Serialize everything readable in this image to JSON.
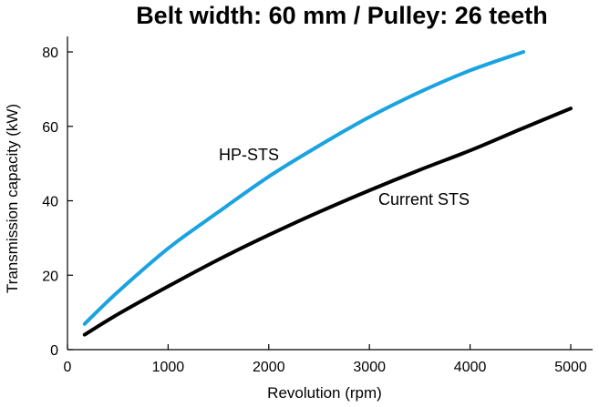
{
  "chart_data": {
    "type": "line",
    "title": "Belt width: 60 mm / Pulley: 26 teeth",
    "xlabel": "Revolution (rpm)",
    "ylabel": "Transmission capacity (kW)",
    "xlim": [
      0,
      5000
    ],
    "ylim": [
      0,
      80
    ],
    "x_ticks": [
      "0",
      "1000",
      "2000",
      "3000",
      "4000",
      "5000"
    ],
    "y_ticks": [
      "0",
      "20",
      "40",
      "60",
      "80"
    ],
    "grid": false,
    "legend": "inline labels",
    "series": [
      {
        "name": "HP-STS",
        "color": "#1aa3e0",
        "x": [
          170,
          500,
          1000,
          1500,
          2000,
          2500,
          3000,
          3500,
          4000,
          4530
        ],
        "y": [
          6.9,
          15.5,
          27.2,
          37.0,
          46.5,
          54.8,
          62.5,
          69.2,
          75.0,
          80.0
        ]
      },
      {
        "name": "Current STS",
        "color": "#000000",
        "x": [
          170,
          500,
          1000,
          1500,
          2000,
          2500,
          3000,
          3500,
          4000,
          4500,
          5000
        ],
        "y": [
          4.0,
          9.5,
          17.0,
          24.2,
          30.8,
          37.0,
          42.8,
          48.3,
          53.5,
          59.2,
          64.8
        ]
      }
    ]
  }
}
